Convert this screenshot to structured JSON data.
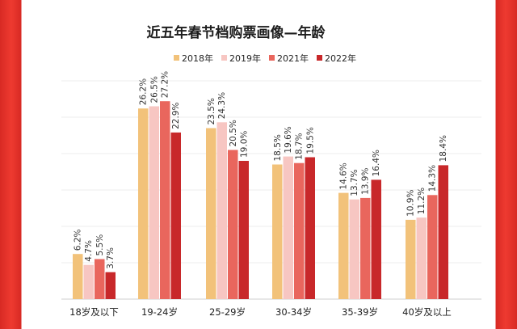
{
  "chart_data": {
    "type": "bar",
    "title": "近五年春节档购票画像—年龄",
    "xlabel": "",
    "ylabel": "",
    "ylim": [
      0,
      30
    ],
    "grid": true,
    "legend_position": "top-center",
    "categories": [
      "18岁及以下",
      "19-24岁",
      "25-29岁",
      "30-34岁",
      "35-39岁",
      "40岁及以上"
    ],
    "series": [
      {
        "name": "2018年",
        "color": "#f2c27a",
        "values": [
          6.2,
          26.2,
          23.5,
          18.5,
          14.6,
          10.9
        ],
        "labels": [
          "6.2%",
          "26.2%",
          "23.5%",
          "18.5%",
          "14.6%",
          "10.9%"
        ]
      },
      {
        "name": "2019年",
        "color": "#f7c6c2",
        "values": [
          4.7,
          26.5,
          24.3,
          19.6,
          13.7,
          11.2
        ],
        "labels": [
          "4.7%",
          "26.5%",
          "24.3%",
          "19.6%",
          "13.7%",
          "11.2%"
        ]
      },
      {
        "name": "2021年",
        "color": "#e9665d",
        "values": [
          5.5,
          27.2,
          20.5,
          18.7,
          13.9,
          14.3
        ],
        "labels": [
          "5.5%",
          "27.2%",
          "20.5%",
          "18.7%",
          "13.9%",
          "14.3%"
        ]
      },
      {
        "name": "2022年",
        "color": "#c8282a",
        "values": [
          3.7,
          22.9,
          19.0,
          19.5,
          16.4,
          18.4
        ],
        "labels": [
          "3.7%",
          "22.9%",
          "19.0%",
          "19.5%",
          "16.4%",
          "18.4%"
        ]
      }
    ]
  }
}
